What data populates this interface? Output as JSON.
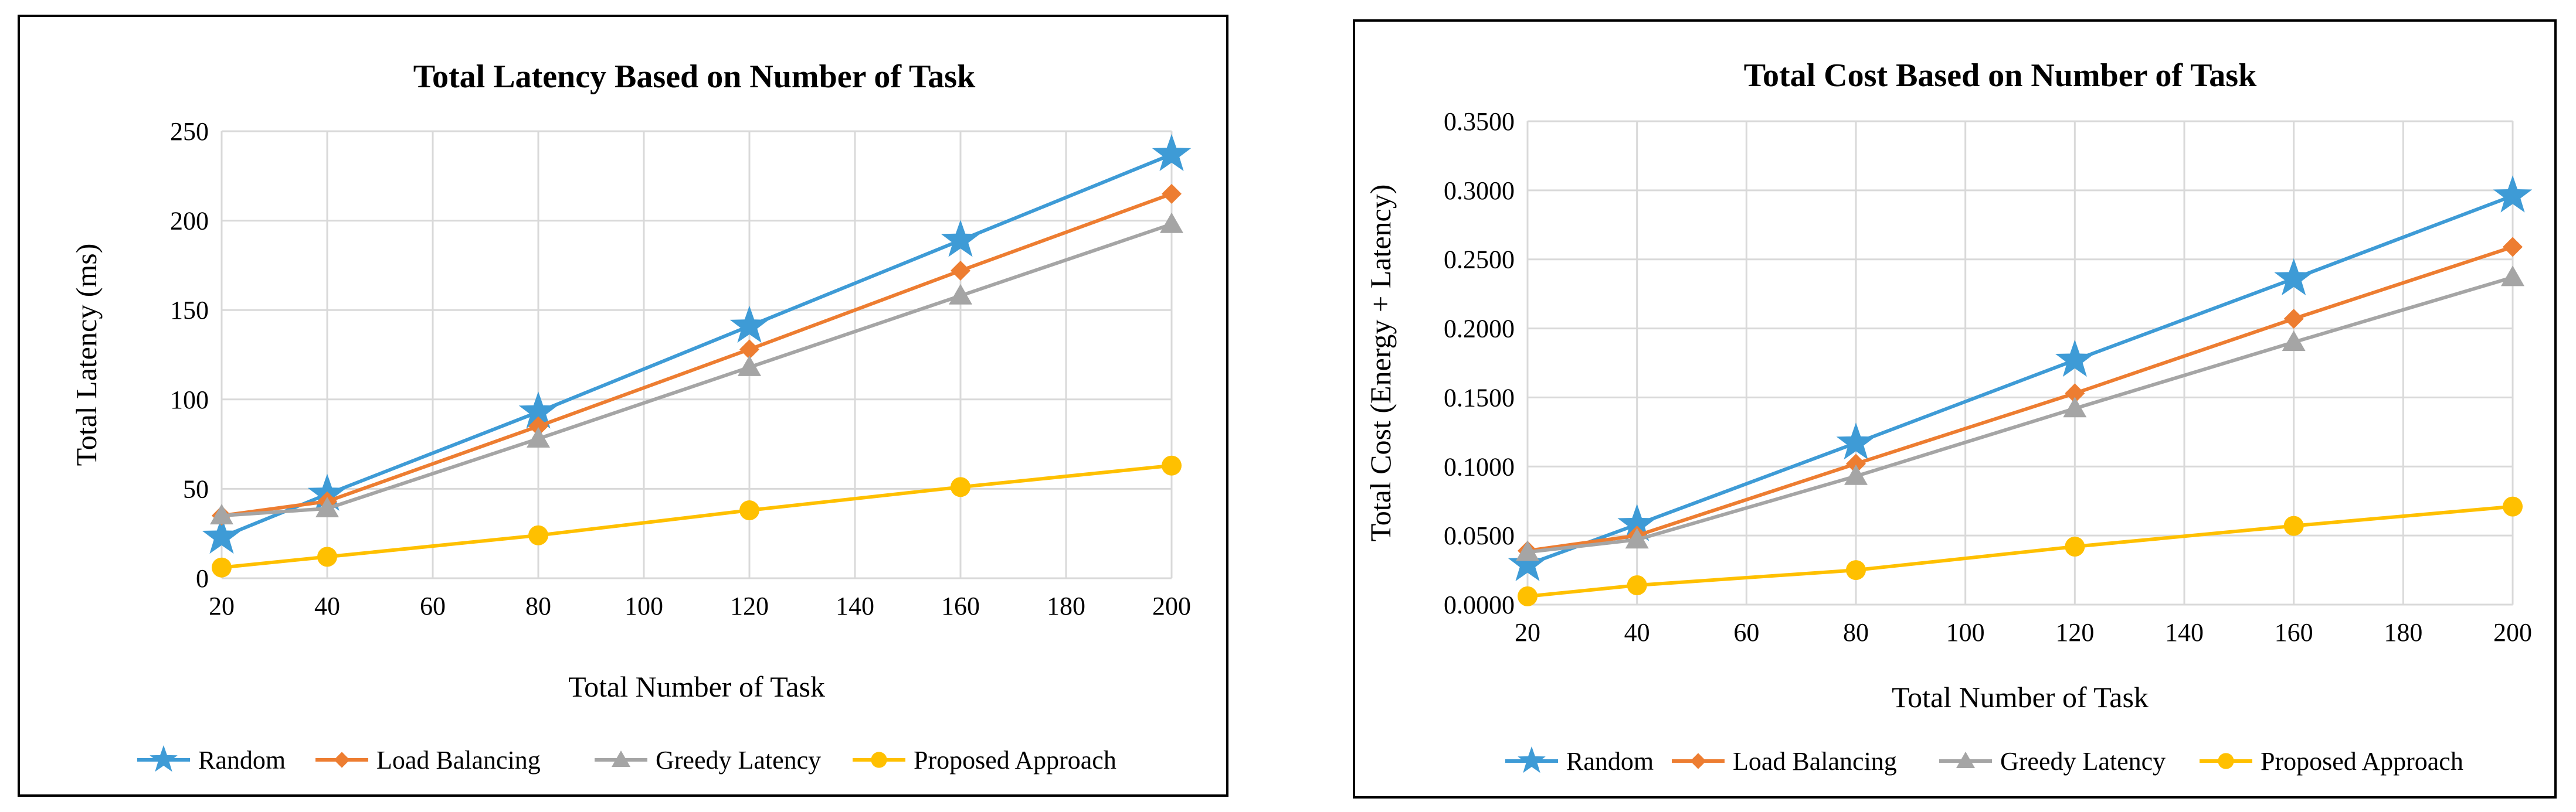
{
  "chart_data": [
    {
      "type": "line",
      "title": "Total Latency Based on Number of Task",
      "xlabel": "Total Number of Task",
      "ylabel": "Total Latency (ms)",
      "x": [
        20,
        40,
        80,
        120,
        160,
        200
      ],
      "xlim": [
        20,
        200
      ],
      "xticks": [
        20,
        40,
        60,
        80,
        100,
        120,
        140,
        160,
        180,
        200
      ],
      "ylim": [
        0,
        250
      ],
      "yticks": [
        0,
        50,
        100,
        150,
        200,
        250
      ],
      "ytick_labels": [
        "0",
        "50",
        "100",
        "150",
        "200",
        "250"
      ],
      "grid": true,
      "legend_position": "bottom",
      "series": [
        {
          "name": "Random",
          "values": [
            23,
            47,
            93,
            141,
            189,
            237
          ],
          "color": "#3e9bd6",
          "marker": "star"
        },
        {
          "name": "Load Balancing",
          "values": [
            35,
            43,
            85,
            128,
            172,
            215
          ],
          "color": "#ed7d31",
          "marker": "diamond"
        },
        {
          "name": "Greedy Latency",
          "values": [
            35,
            39,
            78,
            118,
            158,
            198
          ],
          "color": "#a5a5a5",
          "marker": "triangle"
        },
        {
          "name": "Proposed Approach",
          "values": [
            6,
            12,
            24,
            38,
            51,
            63
          ],
          "color": "#ffc000",
          "marker": "circle"
        }
      ]
    },
    {
      "type": "line",
      "title": "Total Cost Based on Number of Task",
      "xlabel": "Total Number of Task",
      "ylabel": "Total Cost (Energy + Latency)",
      "x": [
        20,
        40,
        80,
        120,
        160,
        200
      ],
      "xlim": [
        20,
        200
      ],
      "xticks": [
        20,
        40,
        60,
        80,
        100,
        120,
        140,
        160,
        180,
        200
      ],
      "ylim": [
        0,
        0.35
      ],
      "yticks": [
        0,
        0.05,
        0.1,
        0.15,
        0.2,
        0.25,
        0.3,
        0.35
      ],
      "ytick_labels": [
        "0.0000",
        "0.0500",
        "0.1000",
        "0.1500",
        "0.2000",
        "0.2500",
        "0.3000",
        "0.3500"
      ],
      "grid": true,
      "legend_position": "bottom",
      "series": [
        {
          "name": "Random",
          "values": [
            0.029,
            0.058,
            0.117,
            0.177,
            0.236,
            0.296
          ],
          "color": "#3e9bd6",
          "marker": "star"
        },
        {
          "name": "Load Balancing",
          "values": [
            0.039,
            0.05,
            0.102,
            0.153,
            0.207,
            0.259
          ],
          "color": "#ed7d31",
          "marker": "diamond"
        },
        {
          "name": "Greedy Latency",
          "values": [
            0.038,
            0.047,
            0.093,
            0.142,
            0.19,
            0.237
          ],
          "color": "#a5a5a5",
          "marker": "triangle"
        },
        {
          "name": "Proposed Approach",
          "values": [
            0.006,
            0.014,
            0.025,
            0.042,
            0.057,
            0.071
          ],
          "color": "#ffc000",
          "marker": "circle"
        }
      ]
    }
  ]
}
